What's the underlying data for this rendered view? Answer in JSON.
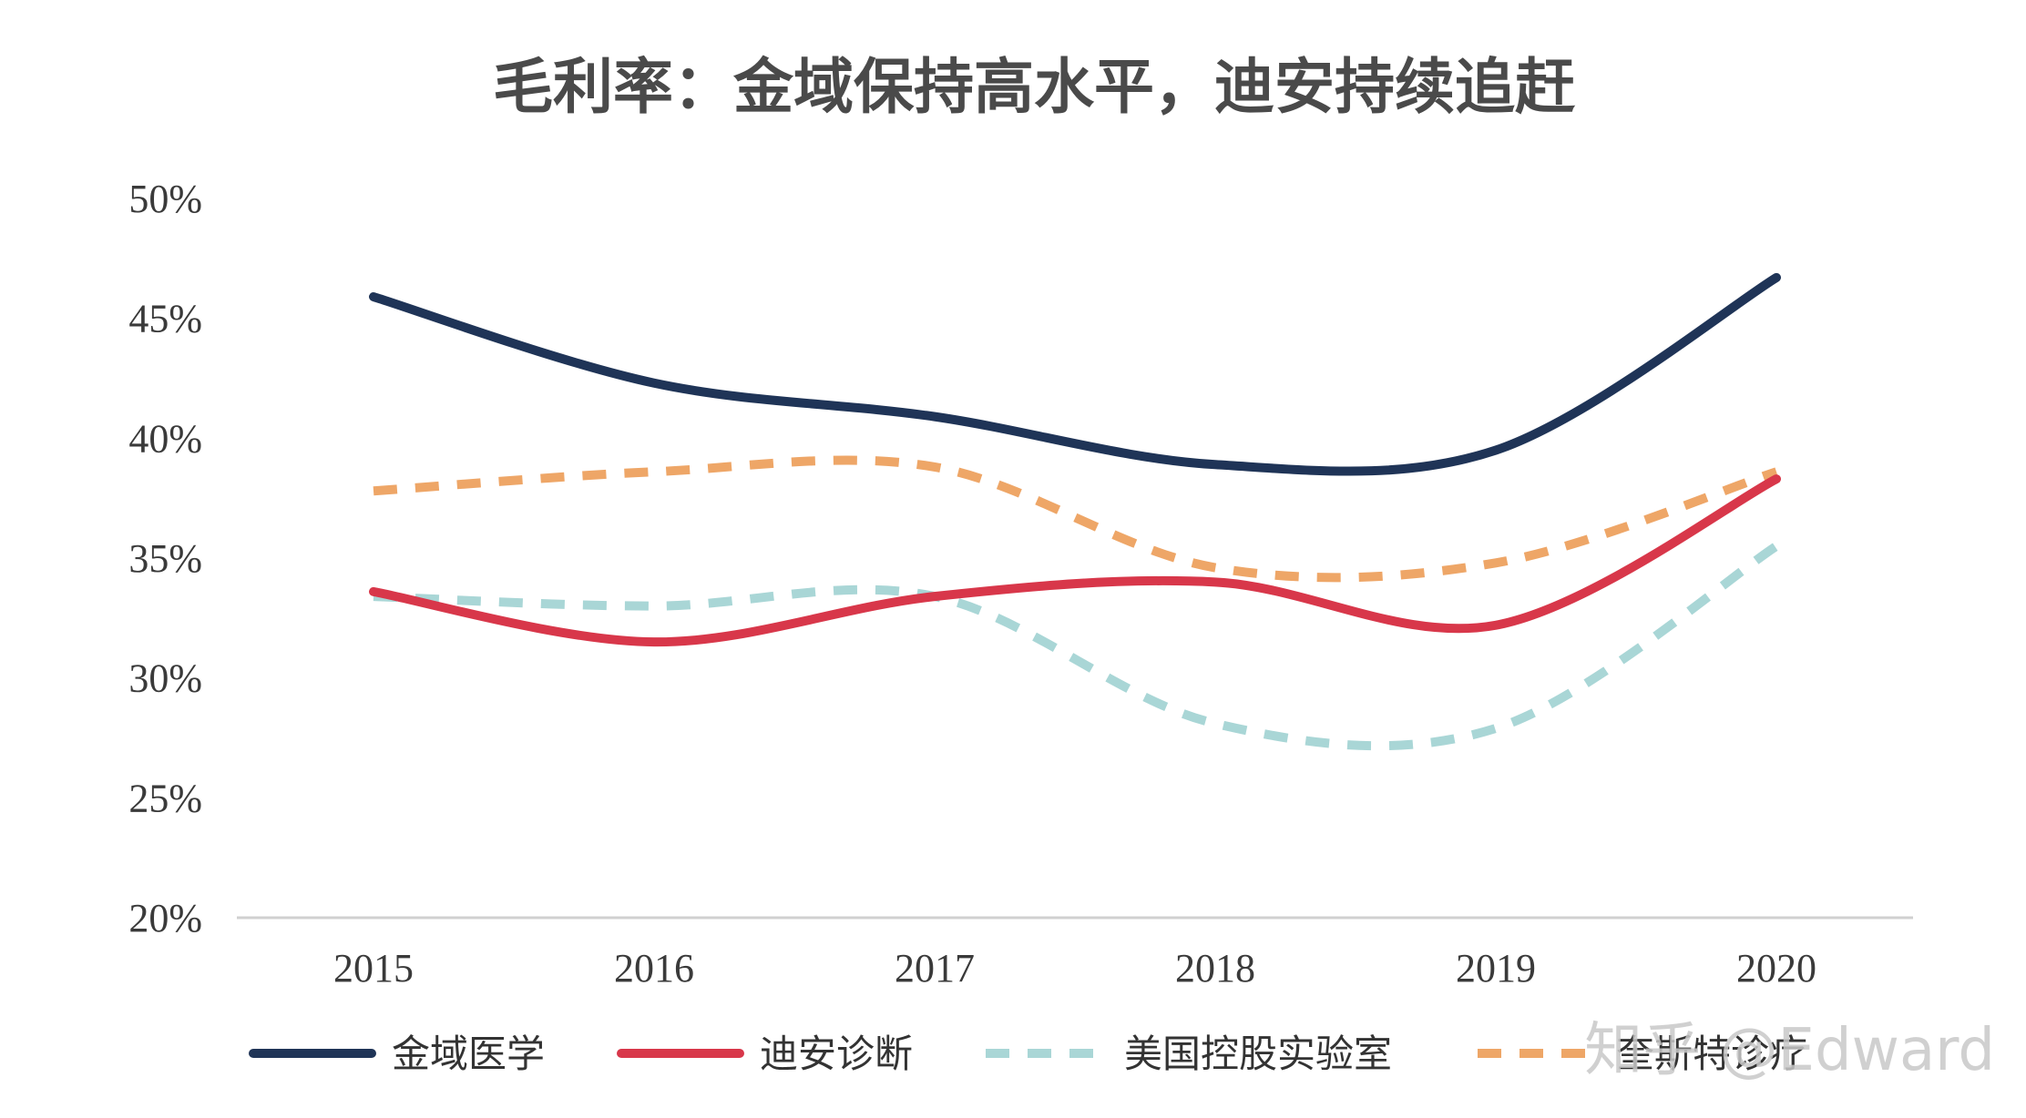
{
  "chart_data": {
    "type": "line",
    "title": "毛利率：金域保持高水平，迪安持续追赶",
    "xlabel": "",
    "ylabel": "",
    "categories": [
      "2015",
      "2016",
      "2017",
      "2018",
      "2019",
      "2020"
    ],
    "ylim": [
      0.2,
      0.5
    ],
    "yticks": [
      0.2,
      0.25,
      0.3,
      0.35,
      0.4,
      0.45,
      0.5
    ],
    "ytick_labels": [
      "20%",
      "25%",
      "30%",
      "35%",
      "40%",
      "45%",
      "50%"
    ],
    "grid": false,
    "legend_position": "bottom",
    "series": [
      {
        "name": "金域医学",
        "values": [
          0.459,
          0.423,
          0.409,
          0.389,
          0.395,
          0.467
        ],
        "color": "#1f3457",
        "dash": "solid"
      },
      {
        "name": "迪安诊断",
        "values": [
          0.336,
          0.315,
          0.334,
          0.34,
          0.322,
          0.383
        ],
        "color": "#d8374a",
        "dash": "solid"
      },
      {
        "name": "美国控股实验室",
        "values": [
          0.334,
          0.33,
          0.334,
          0.281,
          0.279,
          0.355
        ],
        "color": "#a9d6d6",
        "dash": "dashed"
      },
      {
        "name": "奎斯特诊疗",
        "values": [
          0.378,
          0.386,
          0.388,
          0.346,
          0.348,
          0.386
        ],
        "color": "#eea667",
        "dash": "dashed"
      }
    ]
  },
  "watermark": "知乎 @Edward"
}
